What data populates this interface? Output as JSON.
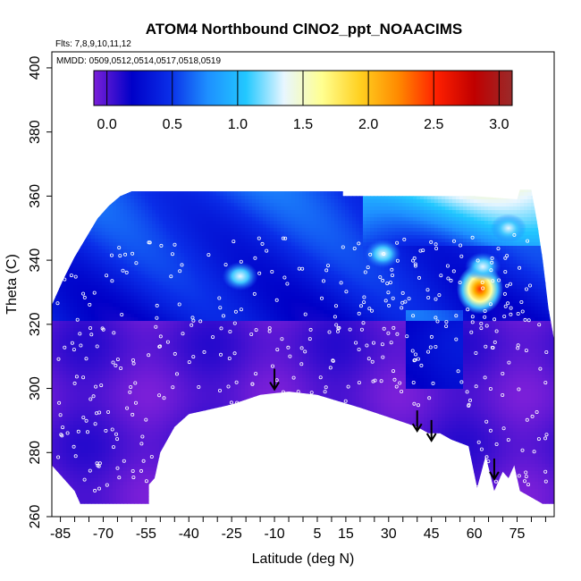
{
  "chart_data": {
    "type": "heatmap",
    "title": "ATOM4 Northbound ClNO2_ppt_NOAACIMS",
    "subtitle_flights": "Flts: 7,8,9,10,11,12",
    "subtitle_dates": "MMDD: 0509,0512,0514,0517,0518,0519",
    "xlabel": "Latitude (deg N)",
    "ylabel": "Theta (C)",
    "xlim": [
      -88,
      88
    ],
    "ylim": [
      260,
      405
    ],
    "x_ticks": [
      "-85",
      "-70",
      "-55",
      "-40",
      "-25",
      "-10",
      "5",
      "15",
      "30",
      "45",
      "60",
      "75"
    ],
    "x_tick_values": [
      -85,
      -70,
      -55,
      -40,
      -25,
      -10,
      5,
      15,
      30,
      45,
      60,
      75
    ],
    "y_ticks": [
      "260",
      "280",
      "300",
      "320",
      "340",
      "360",
      "380",
      "400"
    ],
    "y_tick_values": [
      260,
      280,
      300,
      320,
      340,
      360,
      380,
      400
    ],
    "colorbar": {
      "range": [
        -0.1,
        3.1
      ],
      "ticks": [
        "0.0",
        "0.5",
        "1.0",
        "1.5",
        "2.0",
        "2.5",
        "3.0"
      ],
      "tick_values": [
        0,
        0.5,
        1.0,
        1.5,
        2.0,
        2.5,
        3.0
      ],
      "colors": [
        "#7a1fd8",
        "#0000c8",
        "#0a2ee8",
        "#1e90ff",
        "#22c8ff",
        "#e8f6ff",
        "#ffff90",
        "#ffd020",
        "#ff8a00",
        "#ff2000",
        "#c00000",
        "#9a2a2a"
      ]
    },
    "annotation": "arrows at latitudes -10, 40, 45, 67",
    "arrows": [
      {
        "lat": -10,
        "theta": 300
      },
      {
        "lat": 40,
        "theta": 287
      },
      {
        "lat": 45,
        "theta": 284
      },
      {
        "lat": 67,
        "theta": 272
      }
    ],
    "hotspots": [
      {
        "lat": 62,
        "theta": 331,
        "value": 2.5
      },
      {
        "lat": -22,
        "theta": 335,
        "value": 1.1
      },
      {
        "lat": 63,
        "theta": 338,
        "value": 1.0
      },
      {
        "lat": 72,
        "theta": 350,
        "value": 1.2
      },
      {
        "lat": 28,
        "theta": 342,
        "value": 1.0
      }
    ]
  }
}
